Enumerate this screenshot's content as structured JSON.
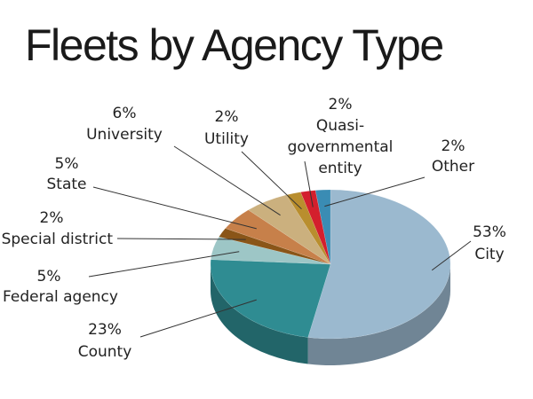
{
  "chart_data": {
    "type": "pie",
    "title": "Fleets by Agency Type",
    "categories": [
      "City",
      "County",
      "Federal agency",
      "Special district",
      "State",
      "University",
      "Utility",
      "Quasi-governmental entity",
      "Other"
    ],
    "values": [
      53,
      23,
      5,
      2,
      5,
      6,
      2,
      2,
      2
    ],
    "value_labels": [
      "53%",
      "23%",
      "5%",
      "2%",
      "5%",
      "6%",
      "2%",
      "2%",
      "2%"
    ],
    "colors": [
      "#9bb9cf",
      "#2f8c92",
      "#9dc6c6",
      "#8a5518",
      "#c7804a",
      "#cbb07e",
      "#b98e2e",
      "#d31f2d",
      "#3a8cb4"
    ]
  }
}
